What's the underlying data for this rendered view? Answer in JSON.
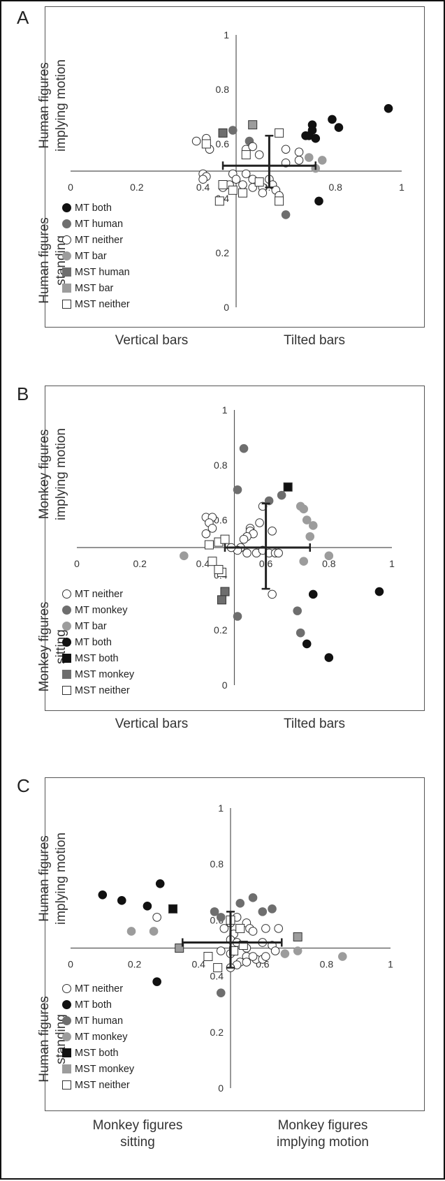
{
  "colors": {
    "black": "#111111",
    "dark_gray": "#6e6e6e",
    "light_gray": "#9c9c9c",
    "white": "#ffffff",
    "axis": "#555555"
  },
  "panels": [
    {
      "label": "A",
      "left_axis_top": "Human figures implying motion",
      "left_axis_bottom": "Human figures standing",
      "bottom_left": "Vertical bars",
      "bottom_right": "Tilted bars"
    },
    {
      "label": "B",
      "left_axis_top": "Monkey figures implying motion",
      "left_axis_bottom": "Monkey figures sitting",
      "bottom_left": "Vertical bars",
      "bottom_right": "Tilted bars"
    },
    {
      "label": "C",
      "left_axis_top": "Human figures implying motion",
      "left_axis_bottom": "Human figures standing",
      "bottom_left": "Monkey figures sitting",
      "bottom_right": "Monkey figures implying motion"
    }
  ],
  "chart_data": [
    {
      "type": "scatter",
      "panel": "A",
      "xlim": [
        0,
        1
      ],
      "ylim": [
        0,
        1
      ],
      "x_ticks": [
        "0",
        "0.2",
        "0.4",
        "0.6",
        "0.8",
        "1"
      ],
      "y_ticks": [
        "0",
        "0.2",
        "0.4",
        "0.6",
        "0.8",
        "1"
      ],
      "axis_cross": {
        "x": 0.5,
        "y": 0.5
      },
      "mean": {
        "x": 0.6,
        "y": 0.52
      },
      "errorbars": {
        "x": [
          0.46,
          0.74
        ],
        "y": [
          0.44,
          0.63
        ]
      },
      "series": [
        {
          "name": "MT both",
          "marker": "circle",
          "fill": "#111111",
          "points": [
            [
              0.96,
              0.73
            ],
            [
              0.79,
              0.69
            ],
            [
              0.81,
              0.66
            ],
            [
              0.73,
              0.67
            ],
            [
              0.73,
              0.65
            ],
            [
              0.71,
              0.63
            ],
            [
              0.72,
              0.63
            ],
            [
              0.74,
              0.62
            ],
            [
              0.75,
              0.39
            ]
          ]
        },
        {
          "name": "MT human",
          "marker": "circle",
          "fill": "#6e6e6e",
          "points": [
            [
              0.49,
              0.65
            ],
            [
              0.54,
              0.61
            ],
            [
              0.65,
              0.34
            ]
          ]
        },
        {
          "name": "MT neither",
          "marker": "circle",
          "fill": "#ffffff",
          "points": [
            [
              0.38,
              0.61
            ],
            [
              0.42,
              0.58
            ],
            [
              0.41,
              0.62
            ],
            [
              0.53,
              0.58
            ],
            [
              0.55,
              0.59
            ],
            [
              0.57,
              0.56
            ],
            [
              0.65,
              0.58
            ],
            [
              0.69,
              0.57
            ],
            [
              0.69,
              0.54
            ],
            [
              0.65,
              0.53
            ],
            [
              0.4,
              0.49
            ],
            [
              0.41,
              0.48
            ],
            [
              0.4,
              0.47
            ],
            [
              0.49,
              0.49
            ],
            [
              0.53,
              0.49
            ],
            [
              0.5,
              0.47
            ],
            [
              0.55,
              0.47
            ],
            [
              0.57,
              0.46
            ],
            [
              0.6,
              0.47
            ],
            [
              0.61,
              0.45
            ],
            [
              0.48,
              0.45
            ],
            [
              0.46,
              0.44
            ],
            [
              0.52,
              0.45
            ],
            [
              0.55,
              0.44
            ],
            [
              0.58,
              0.44
            ],
            [
              0.62,
              0.43
            ],
            [
              0.63,
              0.41
            ],
            [
              0.58,
              0.42
            ]
          ]
        },
        {
          "name": "MT bar",
          "marker": "circle",
          "fill": "#9c9c9c",
          "points": [
            [
              0.72,
              0.55
            ],
            [
              0.76,
              0.54
            ],
            [
              0.74,
              0.51
            ]
          ]
        },
        {
          "name": "MST human",
          "marker": "square",
          "fill": "#6e6e6e",
          "points": [
            [
              0.46,
              0.64
            ]
          ]
        },
        {
          "name": "MST bar",
          "marker": "square",
          "fill": "#9c9c9c",
          "points": [
            [
              0.55,
              0.67
            ]
          ]
        },
        {
          "name": "MST neither",
          "marker": "square",
          "fill": "#ffffff",
          "points": [
            [
              0.41,
              0.6
            ],
            [
              0.63,
              0.64
            ],
            [
              0.53,
              0.56
            ],
            [
              0.46,
              0.45
            ],
            [
              0.49,
              0.43
            ],
            [
              0.45,
              0.39
            ],
            [
              0.52,
              0.42
            ],
            [
              0.57,
              0.46
            ],
            [
              0.63,
              0.39
            ]
          ]
        }
      ]
    },
    {
      "type": "scatter",
      "panel": "B",
      "xlim": [
        0,
        1
      ],
      "ylim": [
        0,
        1
      ],
      "x_ticks": [
        "0",
        "0.2",
        "0.4",
        "0.6",
        "0.8",
        "1"
      ],
      "y_ticks": [
        "0",
        "0.2",
        "0.4",
        "0.6",
        "0.8",
        "1"
      ],
      "axis_cross": {
        "x": 0.5,
        "y": 0.5
      },
      "mean": {
        "x": 0.6,
        "y": 0.5
      },
      "errorbars": {
        "x": [
          0.47,
          0.74
        ],
        "y": [
          0.35,
          0.66
        ]
      },
      "series": [
        {
          "name": "MT neither",
          "marker": "circle",
          "fill": "#ffffff",
          "points": [
            [
              0.41,
              0.61
            ],
            [
              0.43,
              0.61
            ],
            [
              0.42,
              0.59
            ],
            [
              0.43,
              0.57
            ],
            [
              0.41,
              0.55
            ],
            [
              0.55,
              0.57
            ],
            [
              0.55,
              0.56
            ],
            [
              0.56,
              0.55
            ],
            [
              0.58,
              0.59
            ],
            [
              0.59,
              0.65
            ],
            [
              0.62,
              0.56
            ],
            [
              0.54,
              0.54
            ],
            [
              0.53,
              0.53
            ],
            [
              0.52,
              0.5
            ],
            [
              0.54,
              0.48
            ],
            [
              0.57,
              0.48
            ],
            [
              0.59,
              0.49
            ],
            [
              0.61,
              0.48
            ],
            [
              0.63,
              0.48
            ],
            [
              0.64,
              0.48
            ],
            [
              0.62,
              0.33
            ],
            [
              0.51,
              0.49
            ],
            [
              0.49,
              0.5
            ]
          ]
        },
        {
          "name": "MT monkey",
          "marker": "circle",
          "fill": "#6e6e6e",
          "points": [
            [
              0.53,
              0.86
            ],
            [
              0.51,
              0.71
            ],
            [
              0.61,
              0.67
            ],
            [
              0.65,
              0.69
            ],
            [
              0.51,
              0.25
            ],
            [
              0.7,
              0.27
            ],
            [
              0.71,
              0.19
            ]
          ]
        },
        {
          "name": "MT bar",
          "marker": "circle",
          "fill": "#9c9c9c",
          "points": [
            [
              0.34,
              0.47
            ],
            [
              0.71,
              0.65
            ],
            [
              0.72,
              0.64
            ],
            [
              0.73,
              0.6
            ],
            [
              0.75,
              0.58
            ],
            [
              0.74,
              0.54
            ],
            [
              0.72,
              0.45
            ],
            [
              0.8,
              0.47
            ]
          ]
        },
        {
          "name": "MT both",
          "marker": "circle",
          "fill": "#111111",
          "points": [
            [
              0.96,
              0.34
            ],
            [
              0.75,
              0.33
            ],
            [
              0.73,
              0.15
            ],
            [
              0.8,
              0.1
            ]
          ]
        },
        {
          "name": "MST both",
          "marker": "square",
          "fill": "#111111",
          "points": [
            [
              0.67,
              0.72
            ]
          ]
        },
        {
          "name": "MST monkey",
          "marker": "square",
          "fill": "#6e6e6e",
          "points": [
            [
              0.47,
              0.34
            ],
            [
              0.46,
              0.31
            ]
          ]
        },
        {
          "name": "MST neither",
          "marker": "square",
          "fill": "#ffffff",
          "points": [
            [
              0.42,
              0.51
            ],
            [
              0.45,
              0.52
            ],
            [
              0.47,
              0.53
            ],
            [
              0.43,
              0.45
            ],
            [
              0.46,
              0.41
            ],
            [
              0.45,
              0.42
            ]
          ]
        }
      ]
    },
    {
      "type": "scatter",
      "panel": "C",
      "xlim": [
        0,
        1
      ],
      "ylim": [
        0,
        1
      ],
      "x_ticks": [
        "0",
        "0.2",
        "0.4",
        "0.6",
        "0.8",
        "1"
      ],
      "y_ticks": [
        "0",
        "0.2",
        "0.4",
        "0.6",
        "0.8",
        "1"
      ],
      "axis_cross": {
        "x": 0.5,
        "y": 0.5
      },
      "mean": {
        "x": 0.5,
        "y": 0.52
      },
      "errorbars": {
        "x": [
          0.35,
          0.66
        ],
        "y": [
          0.43,
          0.63
        ]
      },
      "series": [
        {
          "name": "MT neither",
          "marker": "circle",
          "fill": "#ffffff",
          "points": [
            [
              0.27,
              0.61
            ],
            [
              0.48,
              0.57
            ],
            [
              0.5,
              0.59
            ],
            [
              0.52,
              0.61
            ],
            [
              0.55,
              0.59
            ],
            [
              0.51,
              0.55
            ],
            [
              0.56,
              0.57
            ],
            [
              0.57,
              0.56
            ],
            [
              0.61,
              0.57
            ],
            [
              0.65,
              0.57
            ],
            [
              0.5,
              0.53
            ],
            [
              0.52,
              0.52
            ],
            [
              0.55,
              0.5
            ],
            [
              0.6,
              0.52
            ],
            [
              0.63,
              0.51
            ],
            [
              0.64,
              0.49
            ],
            [
              0.5,
              0.48
            ],
            [
              0.47,
              0.49
            ],
            [
              0.55,
              0.47
            ],
            [
              0.58,
              0.46
            ],
            [
              0.6,
              0.46
            ],
            [
              0.61,
              0.47
            ],
            [
              0.53,
              0.45
            ],
            [
              0.55,
              0.45
            ],
            [
              0.57,
              0.47
            ],
            [
              0.52,
              0.44
            ],
            [
              0.5,
              0.43
            ]
          ]
        },
        {
          "name": "MT both",
          "marker": "circle",
          "fill": "#111111",
          "points": [
            [
              0.1,
              0.69
            ],
            [
              0.16,
              0.67
            ],
            [
              0.24,
              0.65
            ],
            [
              0.28,
              0.73
            ],
            [
              0.27,
              0.38
            ]
          ]
        },
        {
          "name": "MT human",
          "marker": "circle",
          "fill": "#6e6e6e",
          "points": [
            [
              0.45,
              0.63
            ],
            [
              0.47,
              0.61
            ],
            [
              0.53,
              0.66
            ],
            [
              0.57,
              0.68
            ],
            [
              0.6,
              0.63
            ],
            [
              0.63,
              0.64
            ],
            [
              0.47,
              0.34
            ]
          ]
        },
        {
          "name": "MT monkey",
          "marker": "circle",
          "fill": "#9c9c9c",
          "points": [
            [
              0.19,
              0.56
            ],
            [
              0.26,
              0.56
            ],
            [
              0.67,
              0.48
            ],
            [
              0.71,
              0.49
            ],
            [
              0.85,
              0.47
            ]
          ]
        },
        {
          "name": "MST both",
          "marker": "square",
          "fill": "#111111",
          "points": [
            [
              0.32,
              0.64
            ]
          ]
        },
        {
          "name": "MST monkey",
          "marker": "square",
          "fill": "#9c9c9c",
          "points": [
            [
              0.34,
              0.5
            ],
            [
              0.71,
              0.54
            ]
          ]
        },
        {
          "name": "MST neither",
          "marker": "square",
          "fill": "#ffffff",
          "points": [
            [
              0.5,
              0.6
            ],
            [
              0.53,
              0.57
            ],
            [
              0.51,
              0.49
            ],
            [
              0.43,
              0.47
            ],
            [
              0.54,
              0.51
            ],
            [
              0.46,
              0.43
            ]
          ]
        }
      ]
    }
  ]
}
